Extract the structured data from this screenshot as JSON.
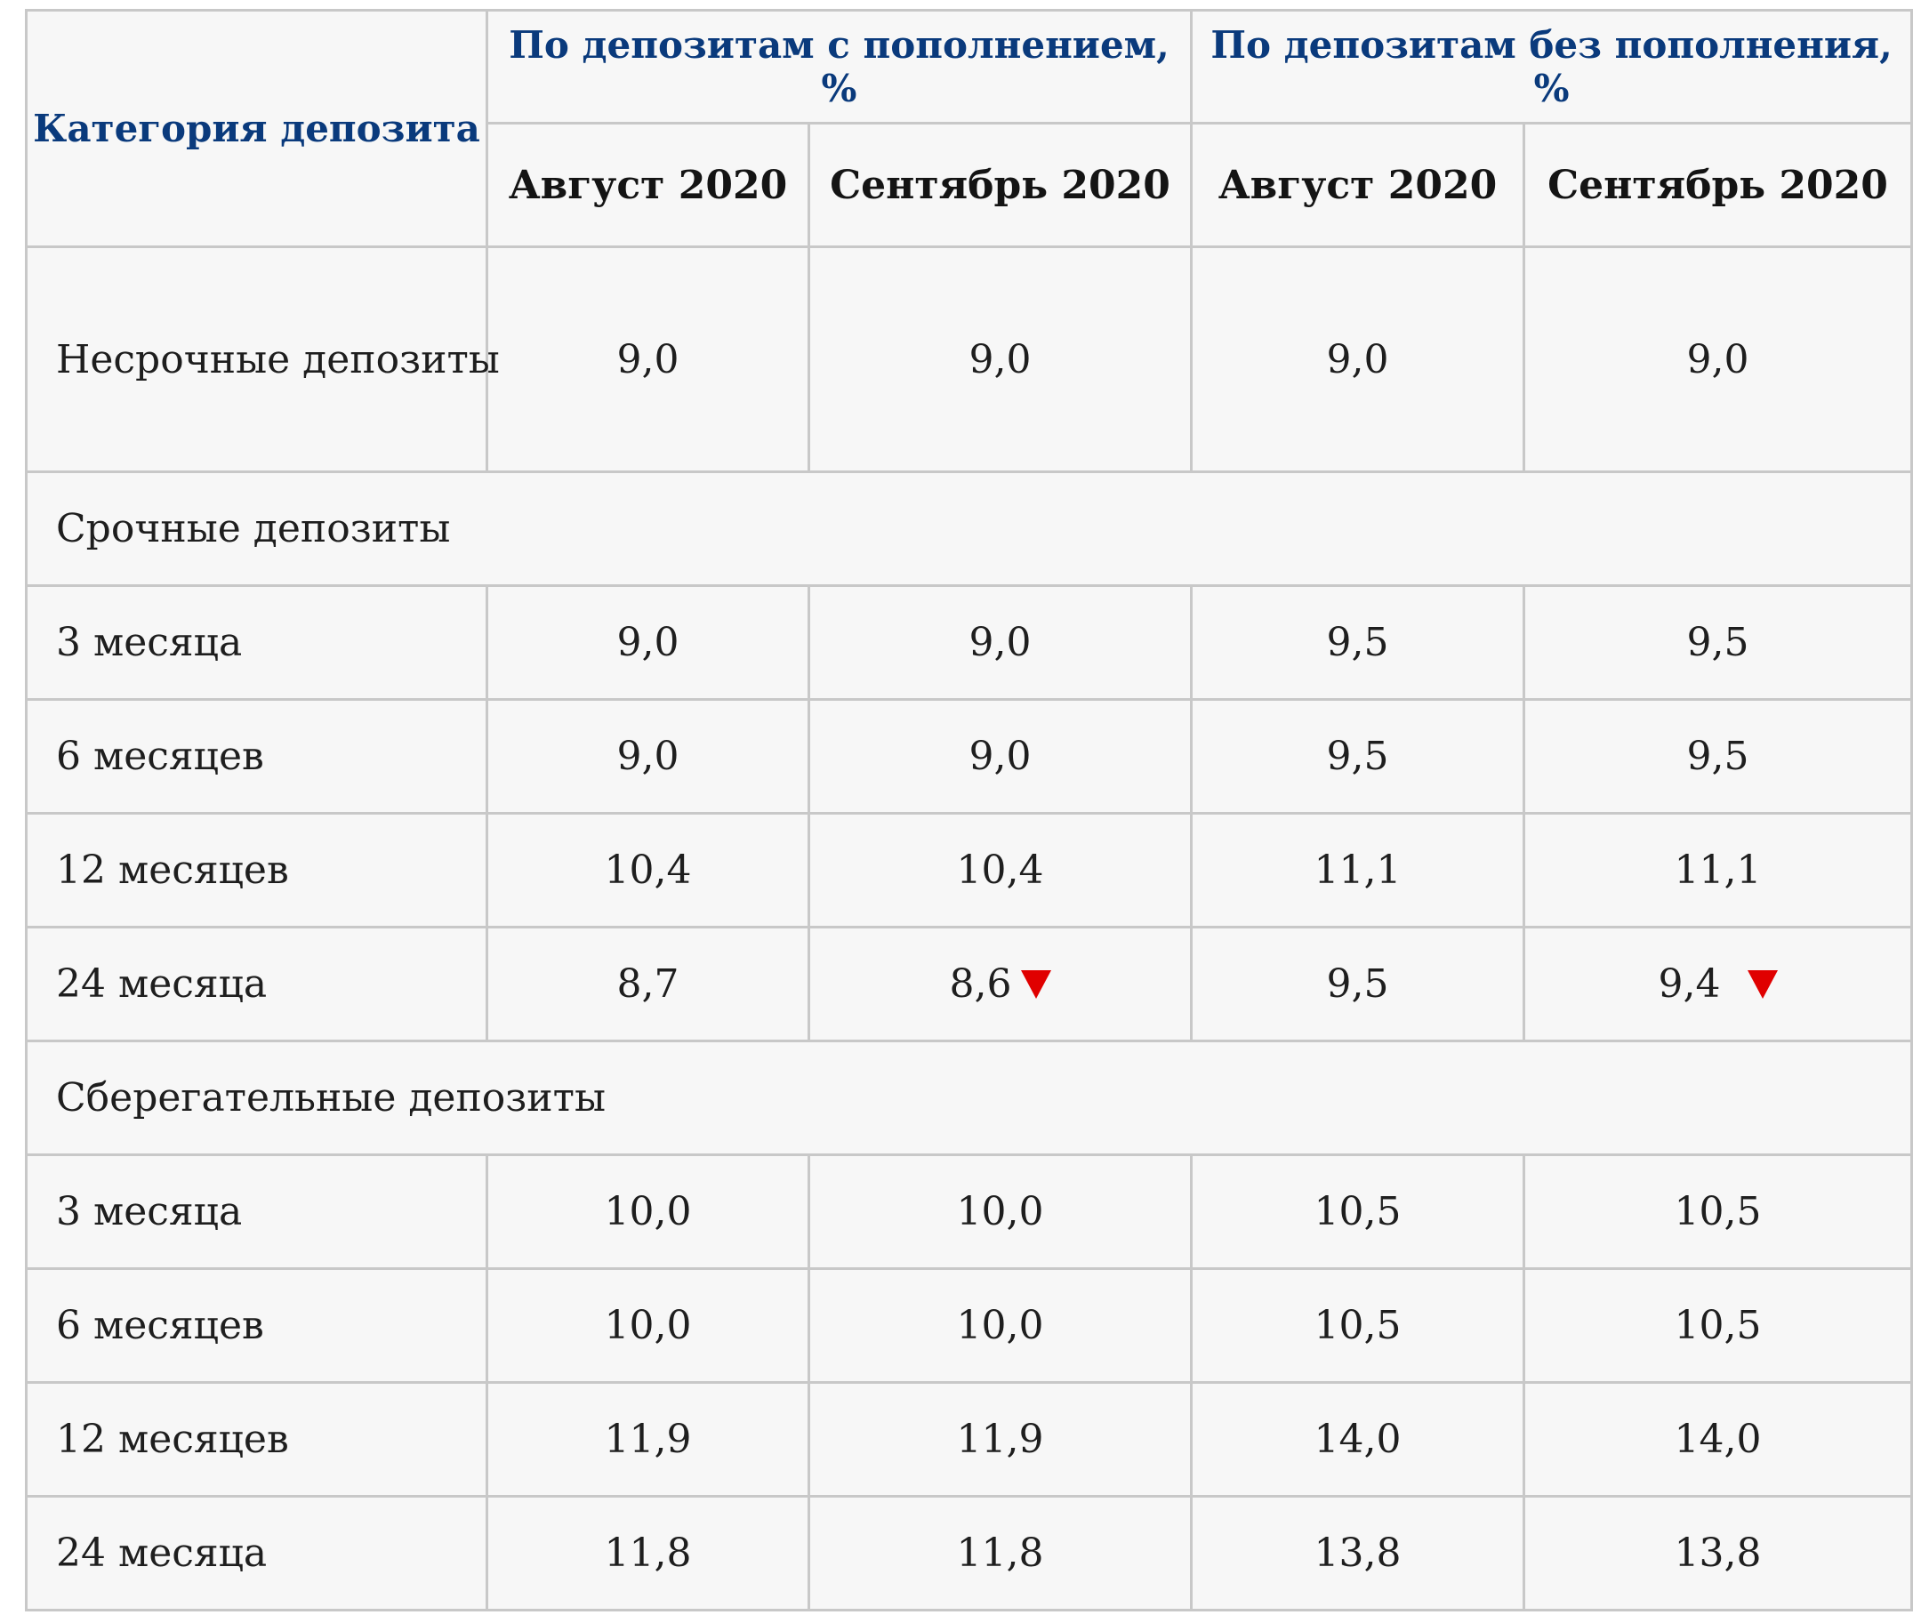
{
  "table": {
    "header": {
      "category": "Категория депозита",
      "group_with": "По депозитам с пополнением, %",
      "group_without": "По депозитам без пополнения, %",
      "months": [
        "Август 2020",
        "Сентябрь 2020",
        "Август 2020",
        "Сентябрь 2020"
      ]
    },
    "indefinite": {
      "label": "Несрочные депозиты",
      "values": [
        "9,0",
        "9,0",
        "9,0",
        "9,0"
      ]
    },
    "term_section": "Срочные депозиты",
    "term_rows": [
      {
        "label": "3 месяца",
        "values": [
          "9,0",
          "9,0",
          "9,5",
          "9,5"
        ]
      },
      {
        "label": "6 месяцев",
        "values": [
          "9,0",
          "9,0",
          "9,5",
          "9,5"
        ]
      },
      {
        "label": "12 месяцев",
        "values": [
          "10,4",
          "10,4",
          "11,1",
          "11,1"
        ]
      },
      {
        "label": "24 месяца",
        "values": [
          "8,7",
          "8,6",
          "9,5",
          "9,4"
        ]
      }
    ],
    "savings_section": "Сберегательные депозиты",
    "savings_rows": [
      {
        "label": "3 месяца",
        "values": [
          "10,0",
          "10,0",
          "10,5",
          "10,5"
        ]
      },
      {
        "label": "6 месяцев",
        "values": [
          "10,0",
          "10,0",
          "10,5",
          "10,5"
        ]
      },
      {
        "label": "12 месяцев",
        "values": [
          "11,9",
          "11,9",
          "14,0",
          "14,0"
        ]
      },
      {
        "label": "24 месяца",
        "values": [
          "11,8",
          "11,8",
          "13,8",
          "13,8"
        ]
      }
    ],
    "decrease_marker_color": "#e00000",
    "header_accent_color": "#0a3a7c"
  }
}
